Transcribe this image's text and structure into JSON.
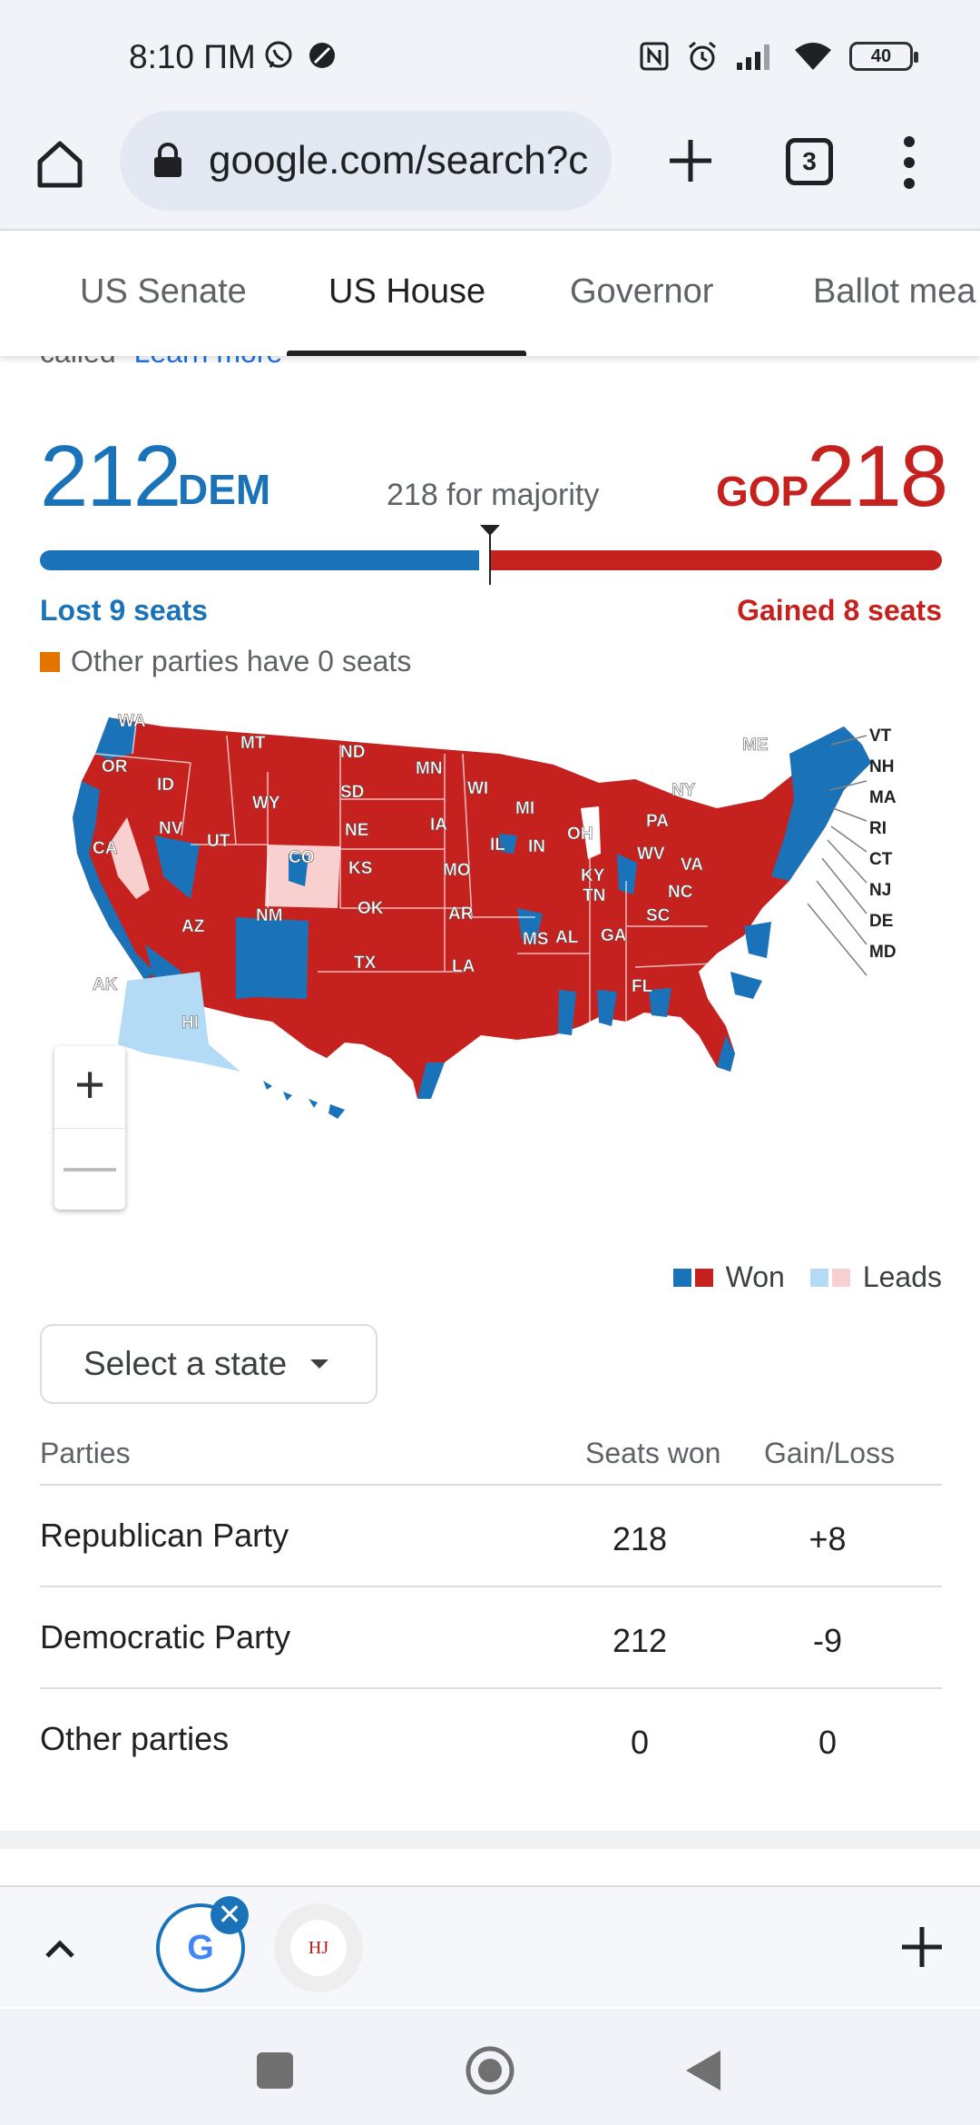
{
  "status_bar": {
    "time": "8:10 ПМ",
    "battery": "40",
    "icons": [
      "viber-icon",
      "do-not-disturb-icon",
      "nfc-icon",
      "alarm-icon",
      "signal-icon",
      "wifi-icon",
      "battery-icon"
    ]
  },
  "browser": {
    "url": "google.com/search?c",
    "tab_count": "3"
  },
  "tabs": [
    {
      "label": "US Senate",
      "active": false
    },
    {
      "label": "US House",
      "active": true
    },
    {
      "label": "Governor",
      "active": false
    },
    {
      "label": "Ballot mea",
      "active": false
    }
  ],
  "cut_off": {
    "text": "called",
    "link": "Learn more"
  },
  "summary": {
    "dem_seats": "212",
    "dem_label": "DEM",
    "gop_seats": "218",
    "gop_label": "GOP",
    "majority_text": "218 for majority",
    "dem_change": "Lost 9 seats",
    "gop_change": "Gained 8 seats",
    "other_note": "Other parties have 0 seats",
    "dem_bar_fraction": 0.487,
    "gop_bar_fraction": 0.501,
    "colors": {
      "dem": "#1a73b8",
      "gop": "#c5221f",
      "other": "#e37400",
      "dem_lead": "#b3dbf5",
      "gop_lead": "#f8d0d0"
    }
  },
  "map": {
    "state_labels": [
      "WA",
      "OR",
      "CA",
      "NV",
      "ID",
      "MT",
      "WY",
      "UT",
      "CO",
      "AZ",
      "NM",
      "ND",
      "SD",
      "NE",
      "KS",
      "OK",
      "TX",
      "MN",
      "IA",
      "MO",
      "AR",
      "LA",
      "WI",
      "IL",
      "MI",
      "IN",
      "OH",
      "KY",
      "TN",
      "MS",
      "AL",
      "GA",
      "FL",
      "SC",
      "NC",
      "VA",
      "WV",
      "PA",
      "NY",
      "ME",
      "AK",
      "HI"
    ],
    "callout_labels": [
      "VT",
      "NH",
      "MA",
      "RI",
      "CT",
      "NJ",
      "DE",
      "MD"
    ],
    "legend_won": "Won",
    "legend_leads": "Leads",
    "zoom_in": "+",
    "zoom_out": "—"
  },
  "select_state": "Select a state",
  "table": {
    "headers": {
      "party": "Parties",
      "seats": "Seats won",
      "gain": "Gain/Loss"
    },
    "rows": [
      {
        "party": "Republican Party",
        "seats": "218",
        "gain": "+8"
      },
      {
        "party": "Democratic Party",
        "seats": "212",
        "gain": "-9"
      },
      {
        "party": "Other parties",
        "seats": "0",
        "gain": "0"
      }
    ]
  },
  "tab_group": {
    "google_letter": "G",
    "close": "✕",
    "hj_label": "HJ"
  }
}
